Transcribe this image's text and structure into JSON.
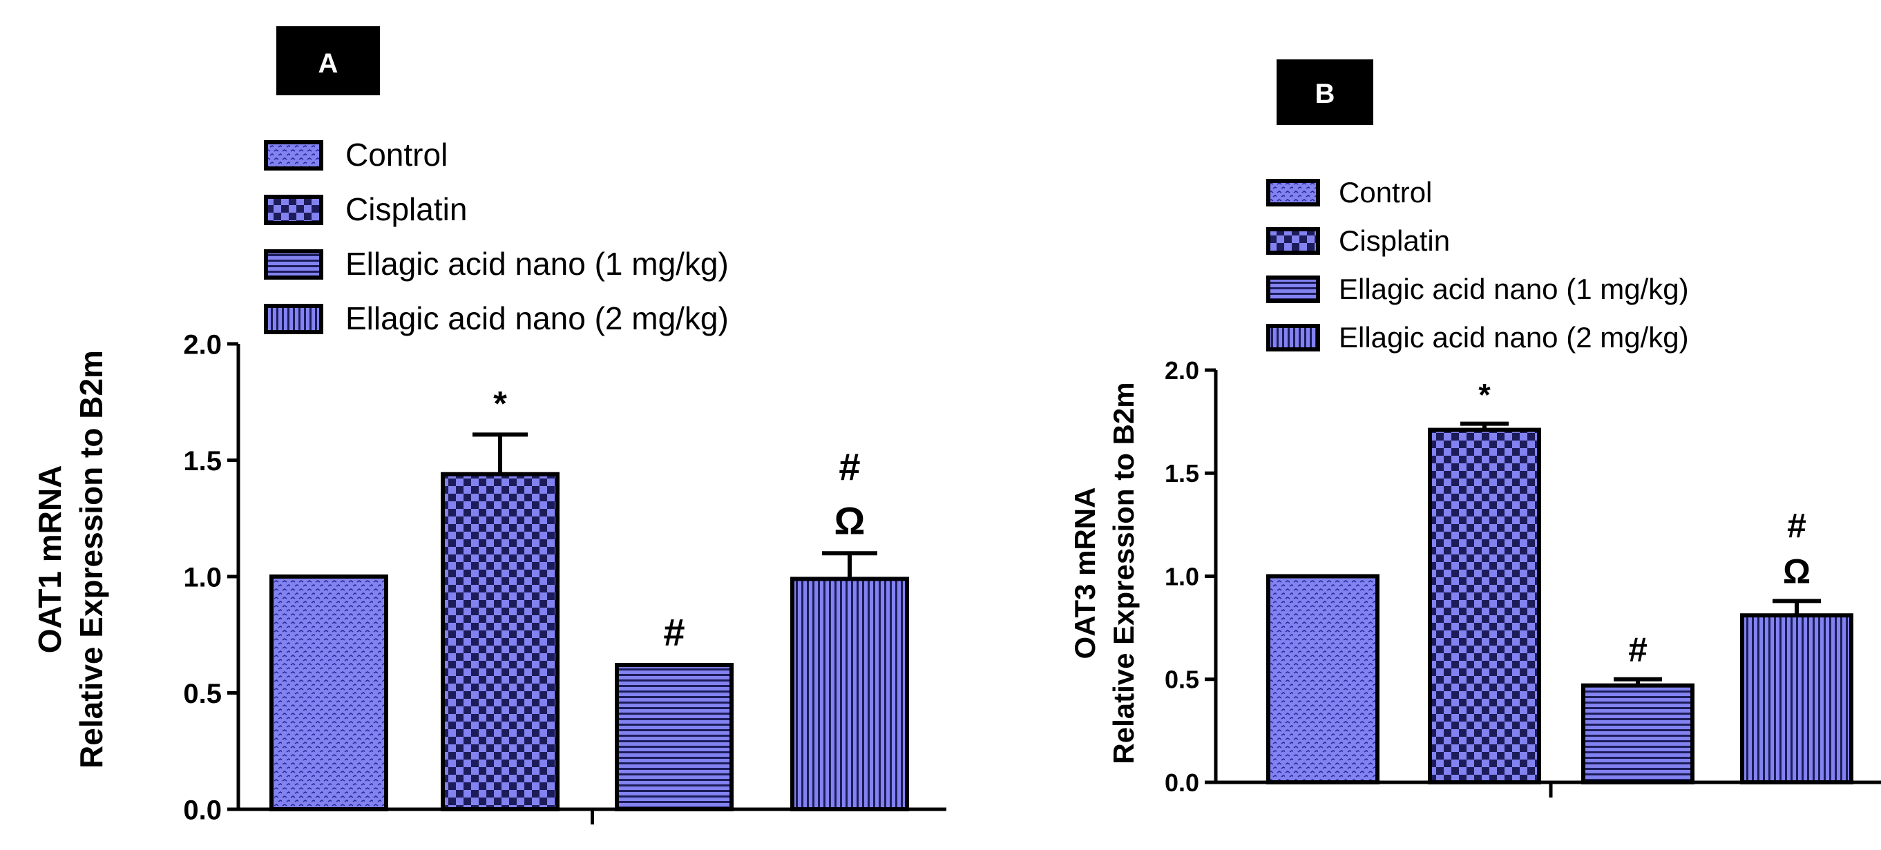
{
  "chart_data": [
    {
      "type": "bar",
      "panel": "A",
      "title": "",
      "ylabel_line1": "OAT1 mRNA",
      "ylabel_line2": "Relative Expression to B2m",
      "xlabel": "",
      "ylim": [
        0,
        2.0
      ],
      "yticks": [
        "0.0",
        "0.5",
        "1.0",
        "1.5",
        "2.0"
      ],
      "ytick_values": [
        0,
        0.5,
        1.0,
        1.5,
        2.0
      ],
      "categories": [
        "Control",
        "Cisplatin",
        "Ellagic acid nano (1 mg/kg)",
        "Ellagic acid nano (2 mg/kg)"
      ],
      "values": [
        1.0,
        1.44,
        0.62,
        0.99
      ],
      "errors": [
        0,
        0.17,
        0,
        0.11
      ],
      "annotations": [
        [],
        [
          "*"
        ],
        [
          "#"
        ],
        [
          "Ω",
          "#"
        ]
      ],
      "legend": [
        "Control",
        "Cisplatin",
        "Ellagic acid nano (1 mg/kg)",
        "Ellagic acid nano (2 mg/kg)"
      ]
    },
    {
      "type": "bar",
      "panel": "B",
      "title": "",
      "ylabel_line1": "OAT3 mRNA",
      "ylabel_line2": "Relative Expression to B2m",
      "xlabel": "",
      "ylim": [
        0,
        2.0
      ],
      "yticks": [
        "0.0",
        "0.5",
        "1.0",
        "1.5",
        "2.0"
      ],
      "ytick_values": [
        0,
        0.5,
        1.0,
        1.5,
        2.0
      ],
      "categories": [
        "Control",
        "Cisplatin",
        "Ellagic acid nano (1 mg/kg)",
        "Ellagic acid nano (2 mg/kg)"
      ],
      "values": [
        1.0,
        1.71,
        0.47,
        0.81
      ],
      "errors": [
        0,
        0.03,
        0.03,
        0.07
      ],
      "annotations": [
        [],
        [
          "*"
        ],
        [
          "#"
        ],
        [
          "Ω",
          "#"
        ]
      ],
      "legend": [
        "Control",
        "Cisplatin",
        "Ellagic acid nano (1 mg/kg)",
        "Ellagic acid nano (2 mg/kg)"
      ]
    }
  ],
  "colors": {
    "bar_fill": "#8282f0",
    "pattern_ink": "#2a2a9a",
    "outline": "#000000",
    "label_box": "#000000"
  }
}
